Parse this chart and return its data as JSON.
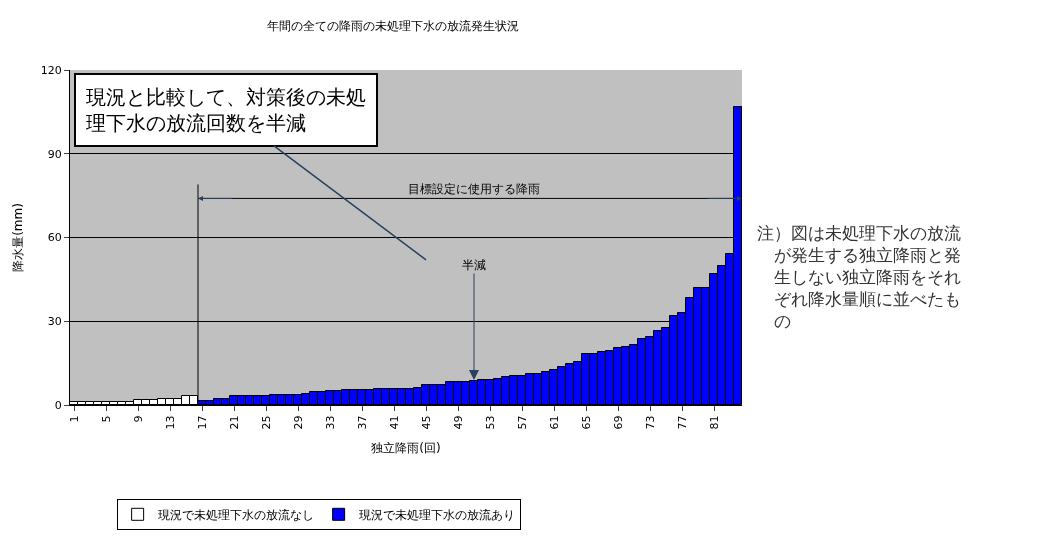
{
  "chart_data": {
    "type": "bar",
    "title": "年間の全ての降雨の未処理下水の放流発生状況",
    "xlabel": "独立降雨(回)",
    "ylabel": "降水量(mm)",
    "categories": [
      "1",
      null,
      null,
      null,
      "5",
      null,
      null,
      null,
      "9",
      null,
      null,
      null,
      "13",
      null,
      null,
      null,
      "17",
      null,
      null,
      null,
      "21",
      null,
      null,
      null,
      "25",
      null,
      null,
      null,
      "29",
      null,
      null,
      null,
      "33",
      null,
      null,
      null,
      "37",
      null,
      null,
      null,
      "41",
      null,
      null,
      null,
      "45",
      null,
      null,
      null,
      "49",
      null,
      null,
      null,
      "53",
      null,
      null,
      null,
      "57",
      null,
      null,
      null,
      "61",
      null,
      null,
      null,
      "65",
      null,
      null,
      null,
      "69",
      null,
      null,
      null,
      "73",
      null,
      null,
      null,
      "77",
      null,
      null,
      null,
      "81",
      null,
      null,
      null
    ],
    "series": [
      {
        "name": "現況で未処理下水の放流なし",
        "color": "#ffffff",
        "values": [
          1.1,
          1.1,
          1.1,
          1.1,
          1.1,
          1.1,
          1.1,
          1.1,
          1.8,
          1.8,
          1.8,
          2.2,
          2.2,
          2.2,
          3.3,
          3.3,
          null,
          null,
          null,
          null,
          null,
          null,
          null,
          null,
          null,
          null,
          null,
          null,
          null,
          null,
          null,
          null,
          null,
          null,
          null,
          null,
          null,
          null,
          null,
          null,
          null,
          null,
          null,
          null,
          null,
          null,
          null,
          null,
          null,
          null,
          null,
          null,
          null,
          null,
          null,
          null,
          null,
          null,
          null,
          null,
          null,
          null,
          null,
          null,
          null,
          null,
          null,
          null,
          null,
          null,
          null,
          null,
          null,
          null,
          null,
          null,
          null,
          null,
          null,
          null,
          null,
          null,
          null,
          null
        ]
      },
      {
        "name": "現況で未処理下水の放流あり",
        "color": "#0000ff",
        "values": [
          null,
          null,
          null,
          null,
          null,
          null,
          null,
          null,
          null,
          null,
          null,
          null,
          null,
          null,
          null,
          null,
          1.6,
          1.6,
          2.2,
          2.2,
          3.3,
          3.3,
          3.3,
          3.3,
          3.3,
          3.6,
          3.6,
          3.6,
          3.6,
          4.0,
          4.6,
          4.6,
          4.9,
          4.9,
          5.5,
          5.5,
          5.5,
          5.5,
          5.7,
          5.7,
          5.7,
          5.7,
          5.7,
          6.2,
          7.2,
          7.2,
          7.2,
          8.1,
          8.1,
          8.1,
          8.5,
          9.0,
          9.0,
          9.4,
          10.0,
          10.4,
          10.4,
          11.2,
          11.2,
          11.7,
          12.6,
          13.5,
          14.8,
          15.3,
          18.1,
          18.1,
          18.9,
          19.5,
          20.4,
          20.8,
          21.4,
          23.6,
          24.4,
          26.5,
          27.6,
          31.8,
          33.1,
          38.2,
          41.9,
          41.9,
          46.9,
          49.7,
          54.0,
          106.9
        ]
      }
    ],
    "ylim": [
      0,
      120
    ],
    "yticks": [
      0,
      30,
      60,
      90,
      120
    ],
    "grid": "y",
    "legend": "bottom",
    "annotations": [
      "現況と比較して、対策後の未処理下水の放流回数を半減",
      "目標設定に使用する降雨",
      {
        "text": "半減",
        "y": 9
      },
      "注）図は未処理下水の放流が発生する独立降雨と発生しない独立降雨をそれぞれ降水量順に並べたもの"
    ]
  }
}
